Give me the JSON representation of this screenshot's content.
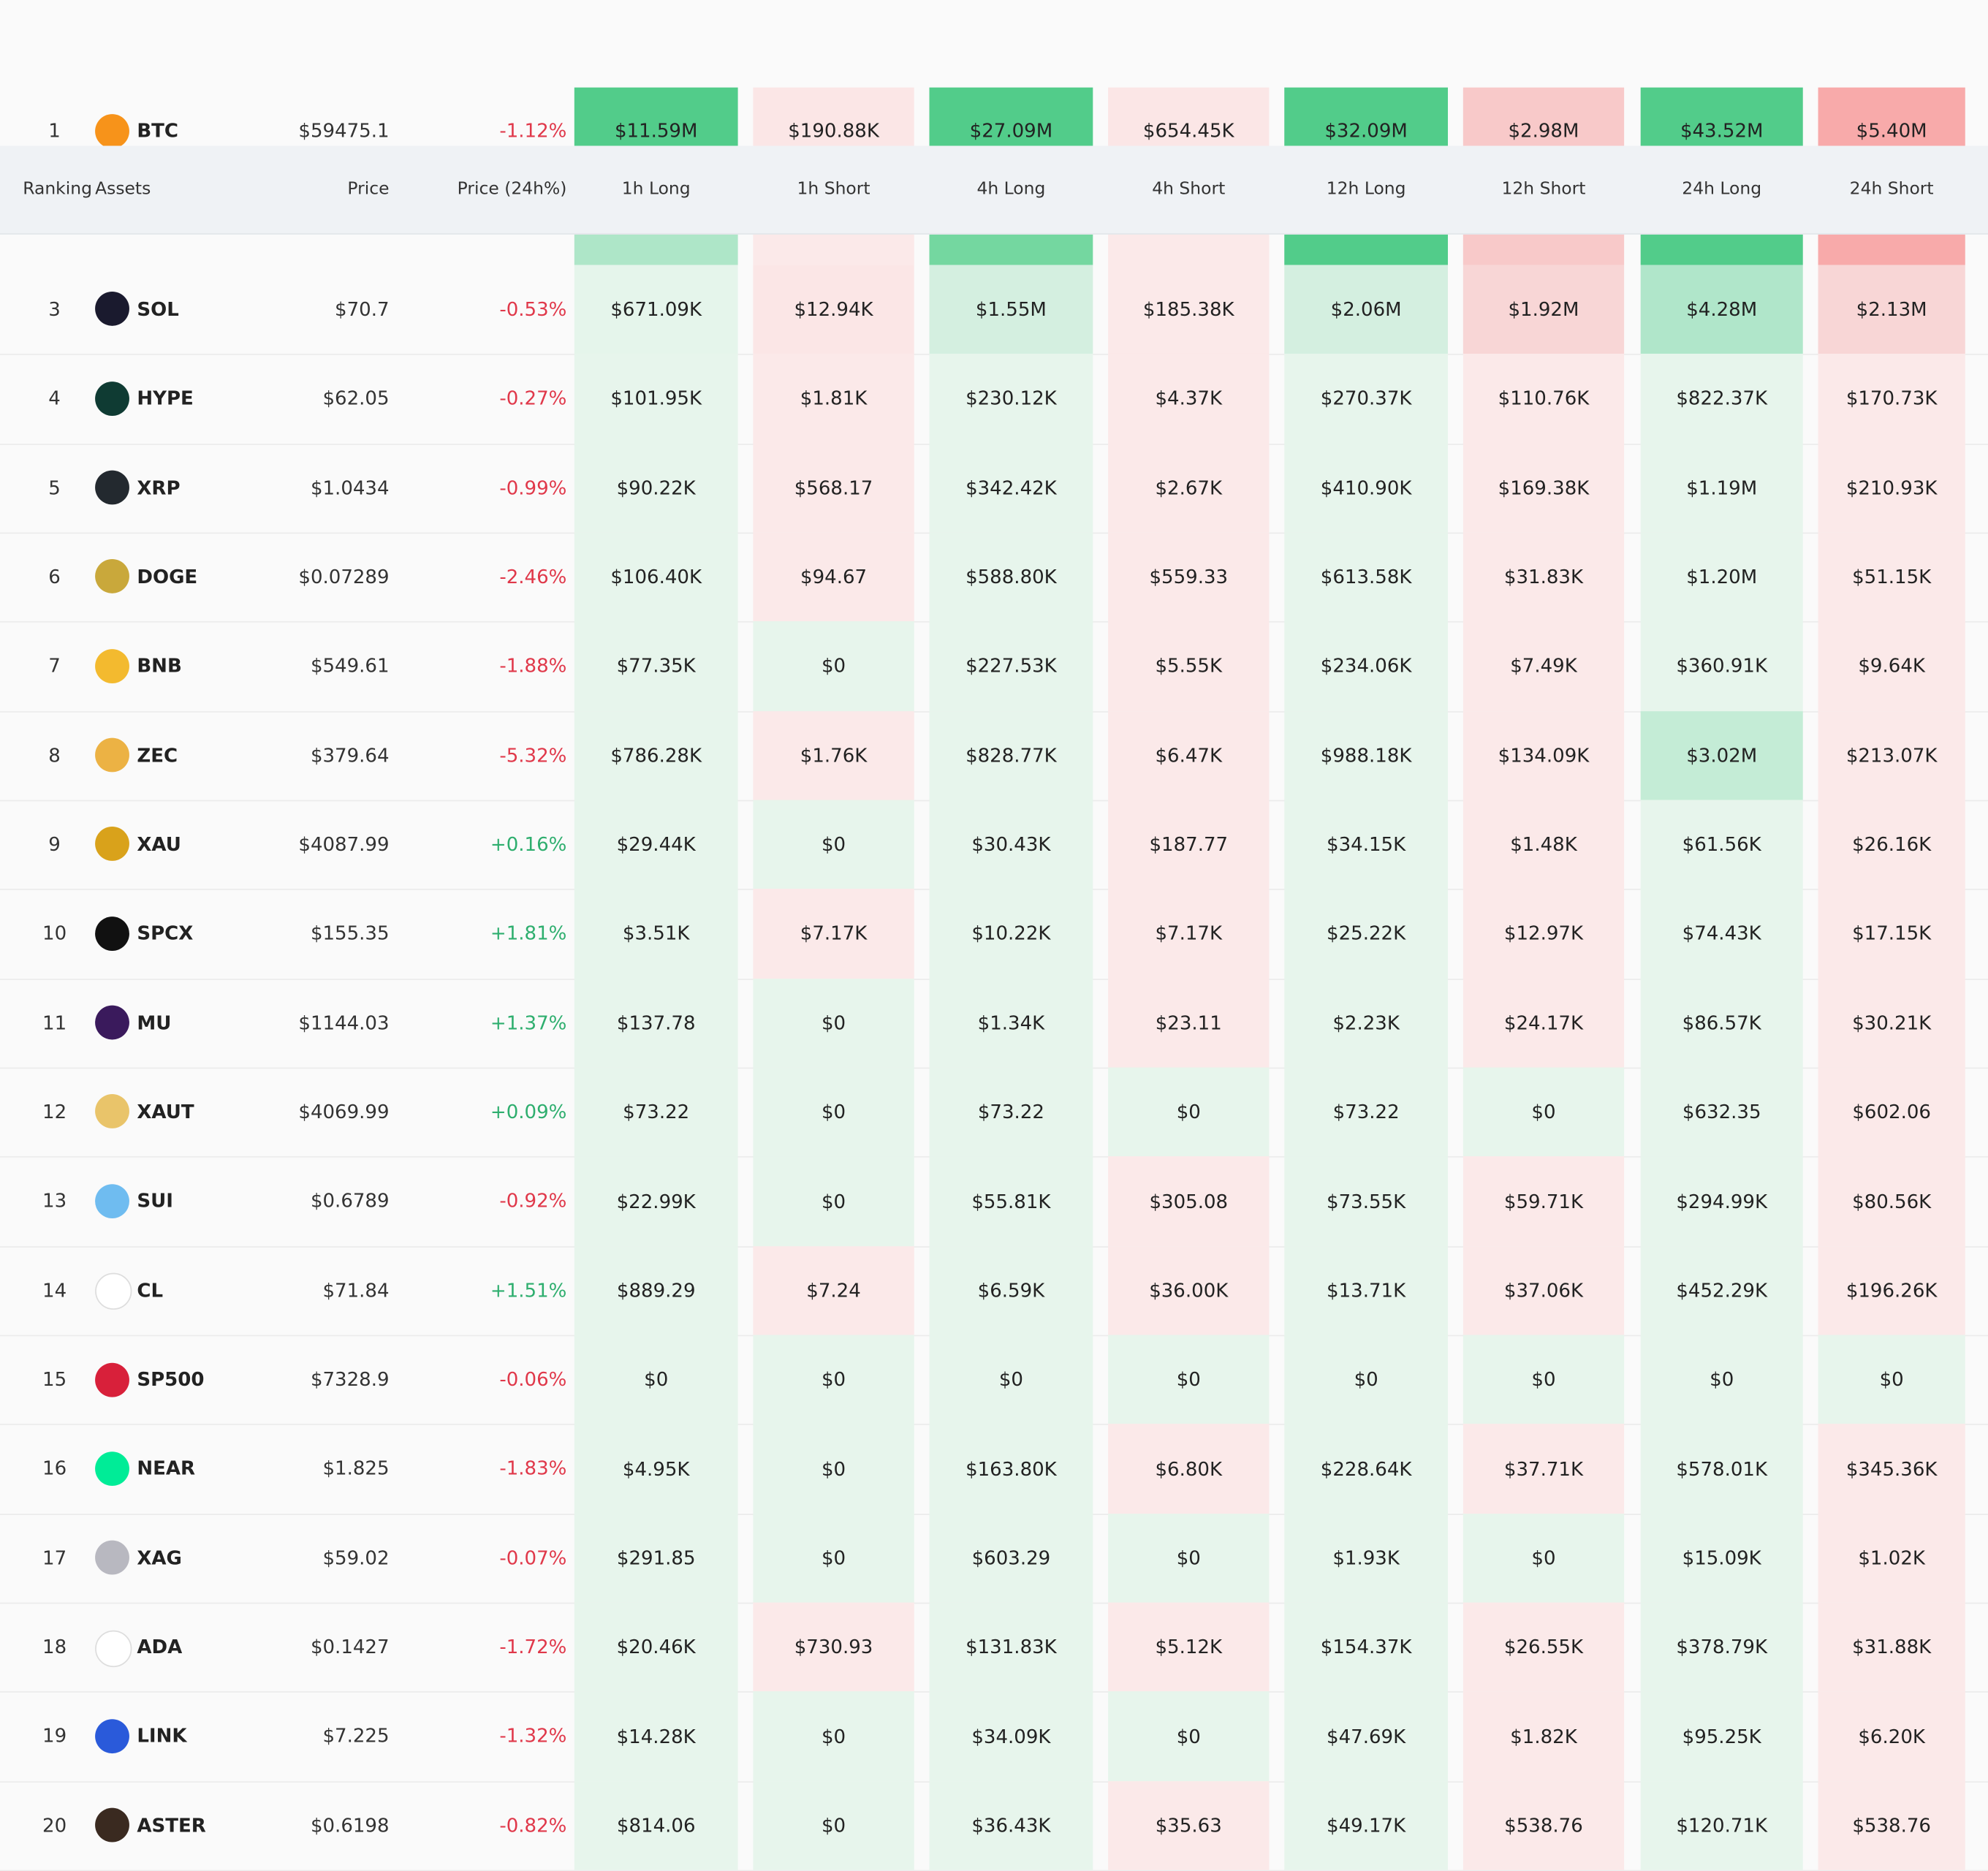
{
  "table": {
    "headers": [
      "Ranking",
      "Assets",
      "Price",
      "Price (24h%)",
      "1h Long",
      "1h Short",
      "4h Long",
      "4h Short",
      "12h Long",
      "12h Short",
      "24h Long",
      "24h Short"
    ],
    "rows": [
      {
        "rank": "1",
        "asset": "BTC",
        "price": "$59475.1",
        "change": "-1.12%",
        "values": [
          "$11.59M",
          "$190.88K",
          "$27.09M",
          "$654.45K",
          "$32.09M",
          "$2.98M",
          "$43.52M",
          "$5.40M"
        ]
      },
      {
        "rank": "3",
        "asset": "SOL",
        "price": "$70.7",
        "change": "-0.53%",
        "values": [
          "$671.09K",
          "$12.94K",
          "$1.55M",
          "$185.38K",
          "$2.06M",
          "$1.92M",
          "$4.28M",
          "$2.13M"
        ]
      },
      {
        "rank": "4",
        "asset": "HYPE",
        "price": "$62.05",
        "change": "-0.27%",
        "values": [
          "$101.95K",
          "$1.81K",
          "$230.12K",
          "$4.37K",
          "$270.37K",
          "$110.76K",
          "$822.37K",
          "$170.73K"
        ]
      },
      {
        "rank": "5",
        "asset": "XRP",
        "price": "$1.0434",
        "change": "-0.99%",
        "values": [
          "$90.22K",
          "$568.17",
          "$342.42K",
          "$2.67K",
          "$410.90K",
          "$169.38K",
          "$1.19M",
          "$210.93K"
        ]
      },
      {
        "rank": "6",
        "asset": "DOGE",
        "price": "$0.07289",
        "change": "-2.46%",
        "values": [
          "$106.40K",
          "$94.67",
          "$588.80K",
          "$559.33",
          "$613.58K",
          "$31.83K",
          "$1.20M",
          "$51.15K"
        ]
      },
      {
        "rank": "7",
        "asset": "BNB",
        "price": "$549.61",
        "change": "-1.88%",
        "values": [
          "$77.35K",
          "$0",
          "$227.53K",
          "$5.55K",
          "$234.06K",
          "$7.49K",
          "$360.91K",
          "$9.64K"
        ]
      },
      {
        "rank": "8",
        "asset": "ZEC",
        "price": "$379.64",
        "change": "-5.32%",
        "values": [
          "$786.28K",
          "$1.76K",
          "$828.77K",
          "$6.47K",
          "$988.18K",
          "$134.09K",
          "$3.02M",
          "$213.07K"
        ]
      },
      {
        "rank": "9",
        "asset": "XAU",
        "price": "$4087.99",
        "change": "+0.16%",
        "values": [
          "$29.44K",
          "$0",
          "$30.43K",
          "$187.77",
          "$34.15K",
          "$1.48K",
          "$61.56K",
          "$26.16K"
        ]
      },
      {
        "rank": "10",
        "asset": "SPCX",
        "price": "$155.35",
        "change": "+1.81%",
        "values": [
          "$3.51K",
          "$7.17K",
          "$10.22K",
          "$7.17K",
          "$25.22K",
          "$12.97K",
          "$74.43K",
          "$17.15K"
        ]
      },
      {
        "rank": "11",
        "asset": "MU",
        "price": "$1144.03",
        "change": "+1.37%",
        "values": [
          "$137.78",
          "$0",
          "$1.34K",
          "$23.11",
          "$2.23K",
          "$24.17K",
          "$86.57K",
          "$30.21K"
        ]
      },
      {
        "rank": "12",
        "asset": "XAUT",
        "price": "$4069.99",
        "change": "+0.09%",
        "values": [
          "$73.22",
          "$0",
          "$73.22",
          "$0",
          "$73.22",
          "$0",
          "$632.35",
          "$602.06"
        ]
      },
      {
        "rank": "13",
        "asset": "SUI",
        "price": "$0.6789",
        "change": "-0.92%",
        "values": [
          "$22.99K",
          "$0",
          "$55.81K",
          "$305.08",
          "$73.55K",
          "$59.71K",
          "$294.99K",
          "$80.56K"
        ]
      },
      {
        "rank": "14",
        "asset": "CL",
        "price": "$71.84",
        "change": "+1.51%",
        "values": [
          "$889.29",
          "$7.24",
          "$6.59K",
          "$36.00K",
          "$13.71K",
          "$37.06K",
          "$452.29K",
          "$196.26K"
        ]
      },
      {
        "rank": "15",
        "asset": "SP500",
        "price": "$7328.9",
        "change": "-0.06%",
        "values": [
          "$0",
          "$0",
          "$0",
          "$0",
          "$0",
          "$0",
          "$0",
          "$0"
        ]
      },
      {
        "rank": "16",
        "asset": "NEAR",
        "price": "$1.825",
        "change": "-1.83%",
        "values": [
          "$4.95K",
          "$0",
          "$163.80K",
          "$6.80K",
          "$228.64K",
          "$37.71K",
          "$578.01K",
          "$345.36K"
        ]
      },
      {
        "rank": "17",
        "asset": "XAG",
        "price": "$59.02",
        "change": "-0.07%",
        "values": [
          "$291.85",
          "$0",
          "$603.29",
          "$0",
          "$1.93K",
          "$0",
          "$15.09K",
          "$1.02K"
        ]
      },
      {
        "rank": "18",
        "asset": "ADA",
        "price": "$0.1427",
        "change": "-1.72%",
        "values": [
          "$20.46K",
          "$730.93",
          "$131.83K",
          "$5.12K",
          "$154.37K",
          "$26.55K",
          "$378.79K",
          "$31.88K"
        ]
      },
      {
        "rank": "19",
        "asset": "LINK",
        "price": "$7.225",
        "change": "-1.32%",
        "values": [
          "$14.28K",
          "$0",
          "$34.09K",
          "$0",
          "$47.69K",
          "$1.82K",
          "$95.25K",
          "$6.20K"
        ]
      },
      {
        "rank": "20",
        "asset": "ASTER",
        "price": "$0.6198",
        "change": "-0.82%",
        "values": [
          "$814.06",
          "$0",
          "$36.43K",
          "$35.63",
          "$49.17K",
          "$538.76",
          "$120.71K",
          "$538.76"
        ]
      }
    ]
  }
}
